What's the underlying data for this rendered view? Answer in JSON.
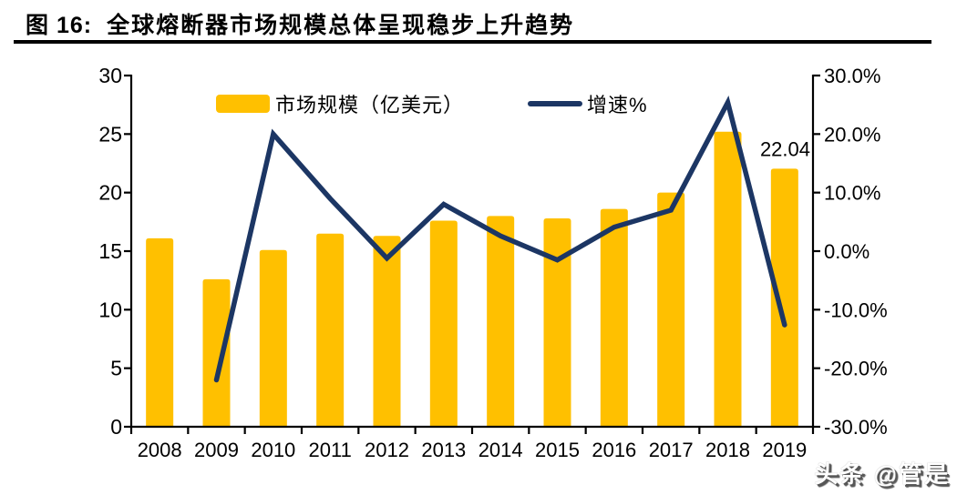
{
  "figure": {
    "label": "图 16:",
    "title": "全球熔断器市场规模总体呈现稳步上升趋势"
  },
  "watermark": "头条 @管是",
  "chart_data": {
    "type": "bar+line",
    "categories": [
      "2008",
      "2009",
      "2010",
      "2011",
      "2012",
      "2013",
      "2014",
      "2015",
      "2016",
      "2017",
      "2018",
      "2019"
    ],
    "series": [
      {
        "name": "市场规模（亿美元）",
        "type": "bar",
        "axis": "left",
        "color": "#FFC000",
        "values": [
          16.1,
          12.6,
          15.1,
          16.5,
          16.3,
          17.6,
          18.0,
          17.8,
          18.6,
          20.0,
          25.2,
          22.04
        ]
      },
      {
        "name": "增速%",
        "type": "line",
        "axis": "right",
        "color": "#1C3664",
        "values": [
          null,
          -22.0,
          20.0,
          9.0,
          -1.2,
          8.0,
          2.6,
          -1.5,
          4.1,
          7.0,
          25.4,
          -12.6
        ]
      }
    ],
    "left_axis": {
      "min": 0,
      "max": 30,
      "step": 5,
      "tick_labels": [
        "30",
        "25",
        "20",
        "15",
        "10",
        "5",
        "0"
      ]
    },
    "right_axis": {
      "min": -30,
      "max": 30,
      "step": 10,
      "tick_labels": [
        "30.0%",
        "20.0%",
        "10.0%",
        "0.0%",
        "-10.0%",
        "-20.0%",
        "-30.0%"
      ]
    },
    "annotation": {
      "text": "22.04",
      "category": "2019",
      "value": 22.04
    },
    "legend": {
      "position": "top-inside",
      "entries": [
        "市场规模（亿美元）",
        "增速%"
      ]
    },
    "grid": false
  }
}
